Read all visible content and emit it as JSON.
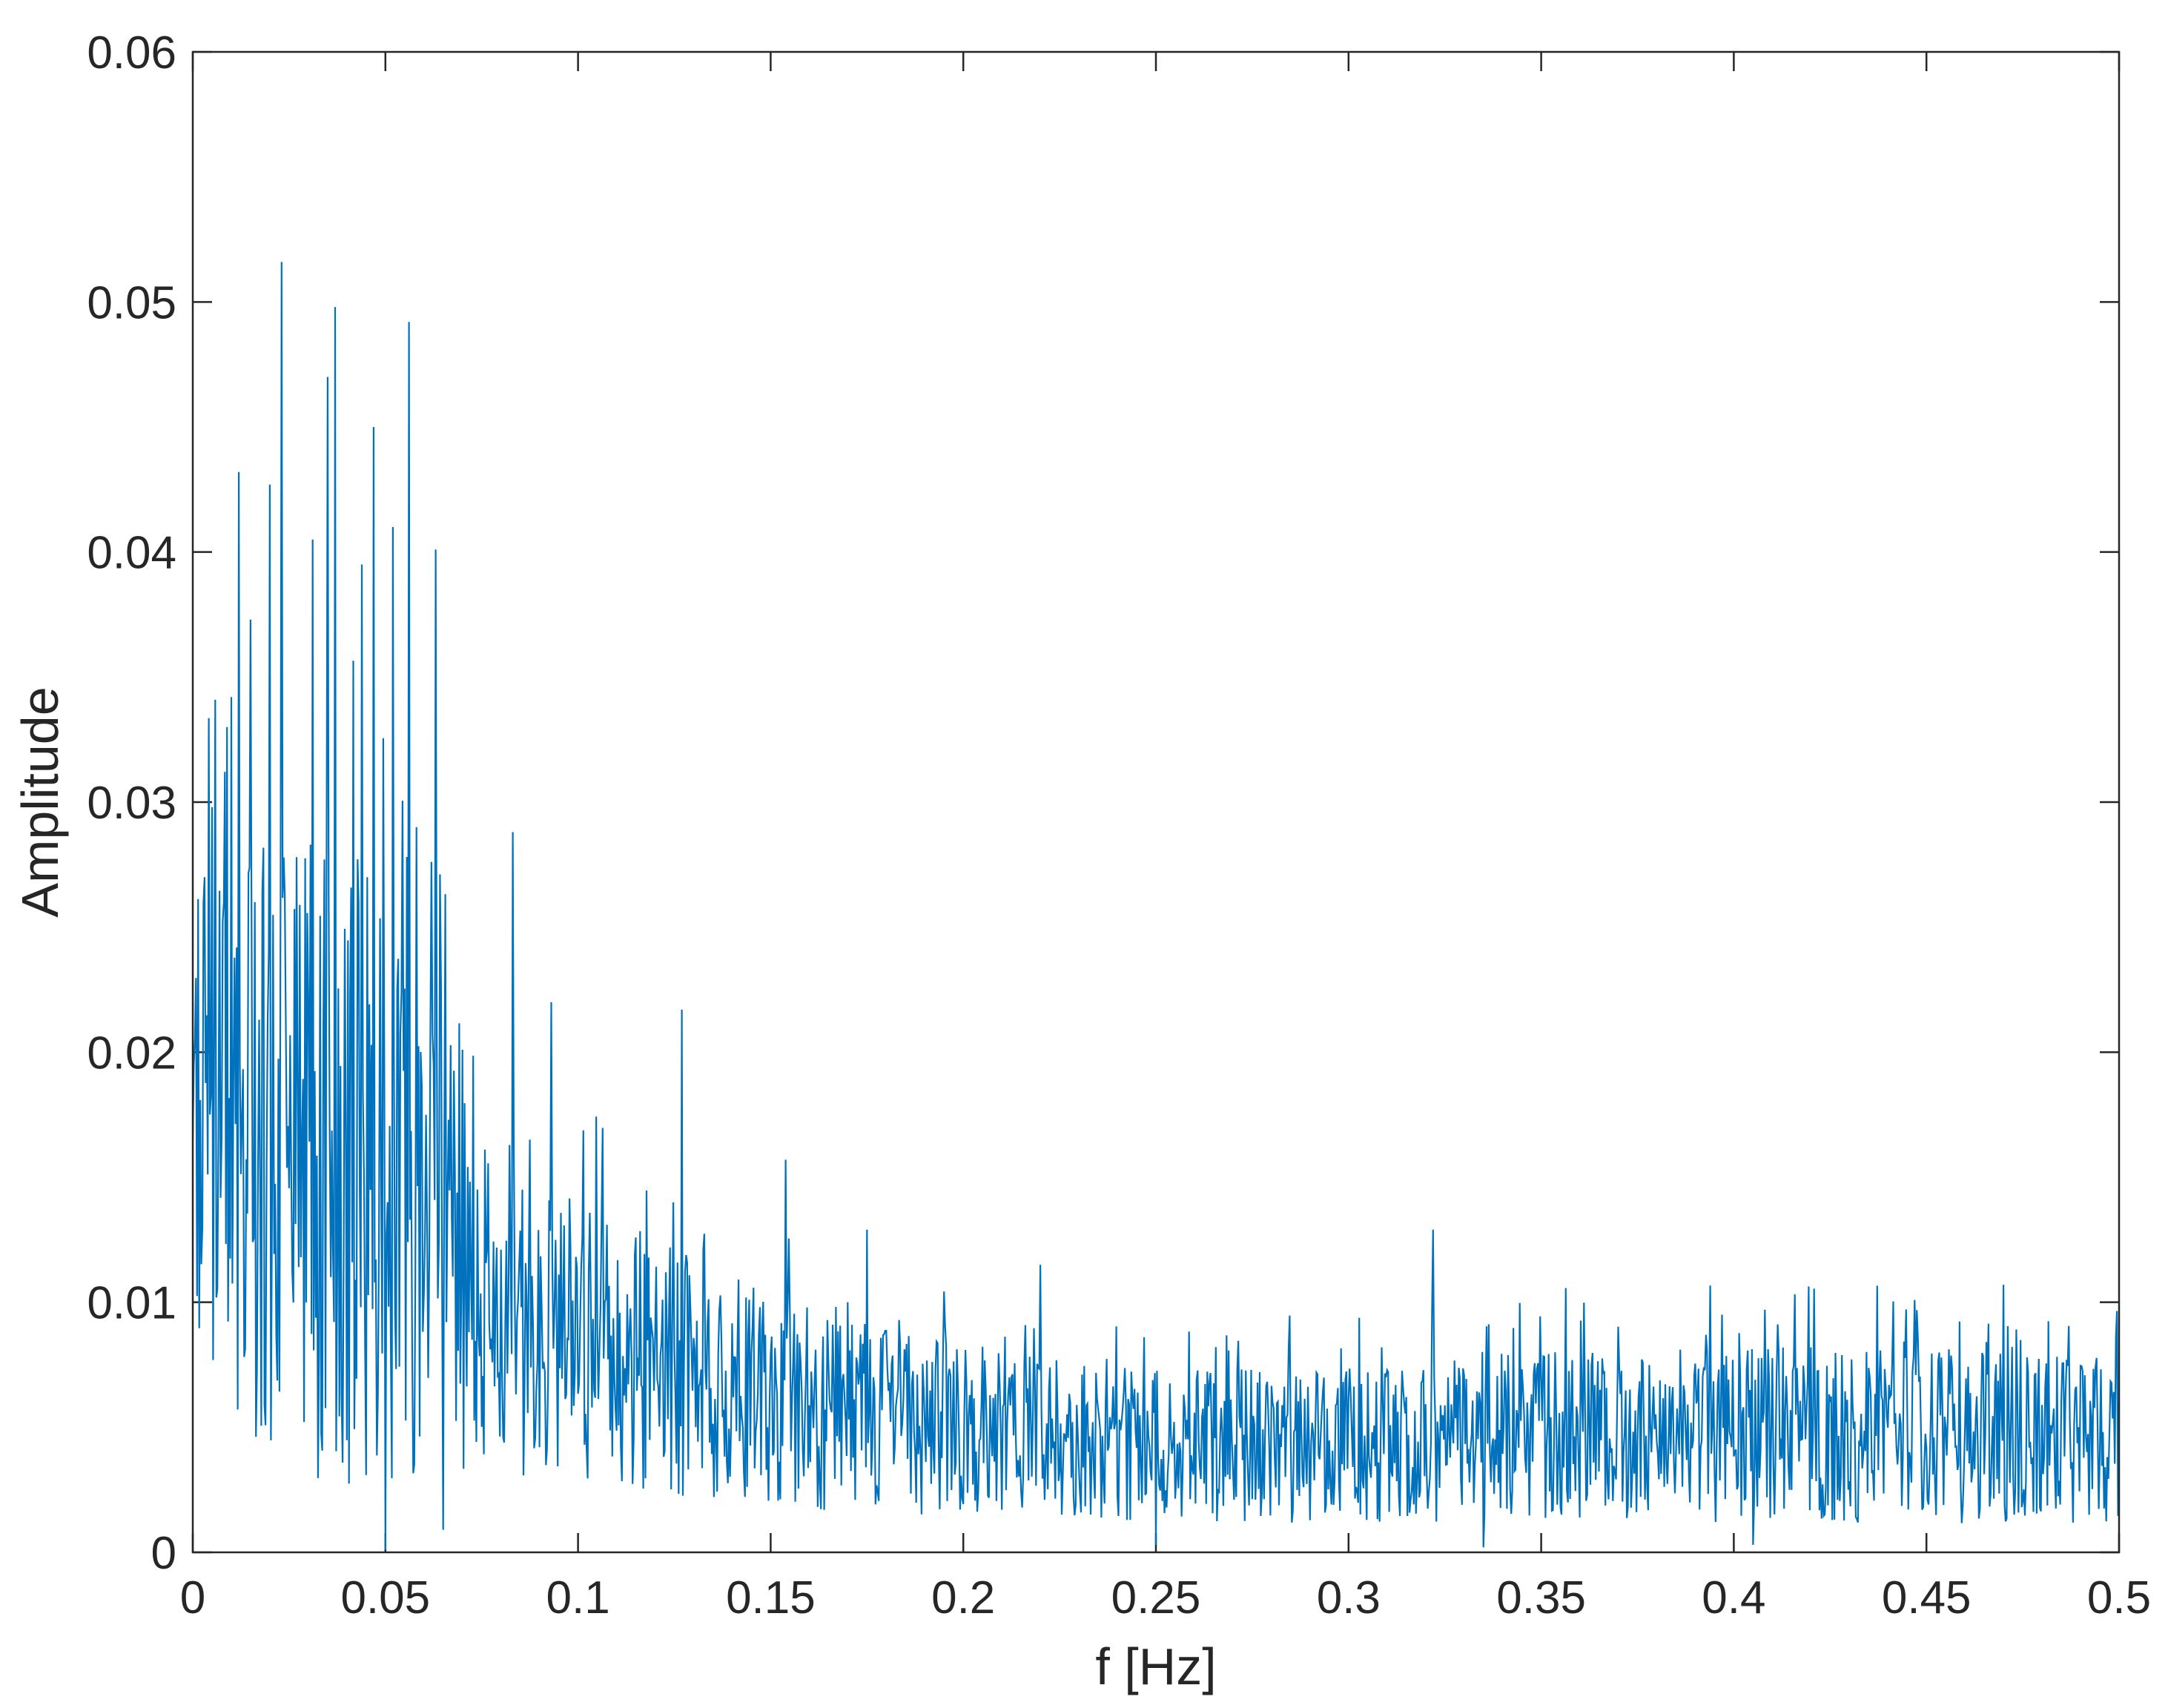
{
  "chart_data": {
    "type": "line",
    "title": "",
    "xlabel": "f [Hz]",
    "ylabel": "Amplitude",
    "xlim": [
      0,
      0.5
    ],
    "ylim": [
      0,
      0.06
    ],
    "x_ticks": [
      "0",
      "0.05",
      "0.1",
      "0.15",
      "0.2",
      "0.25",
      "0.3",
      "0.35",
      "0.4",
      "0.45",
      "0.5"
    ],
    "y_ticks": [
      "0",
      "0.01",
      "0.02",
      "0.03",
      "0.04",
      "0.05",
      "0.06"
    ],
    "grid": false,
    "line_color": "#0072BD",
    "axis_color": "#262626",
    "series": [
      {
        "x_range": [
          0,
          0.5
        ],
        "peaks": [
          {
            "x": 0.0,
            "y": 0.0165
          },
          {
            "x": 0.003,
            "y": 0.027
          },
          {
            "x": 0.005,
            "y": 0.0298
          },
          {
            "x": 0.008,
            "y": 0.026
          },
          {
            "x": 0.009,
            "y": 0.033
          },
          {
            "x": 0.01,
            "y": 0.0342
          },
          {
            "x": 0.012,
            "y": 0.0432
          },
          {
            "x": 0.015,
            "y": 0.0373
          },
          {
            "x": 0.02,
            "y": 0.0427
          },
          {
            "x": 0.023,
            "y": 0.0516
          },
          {
            "x": 0.027,
            "y": 0.0278
          },
          {
            "x": 0.031,
            "y": 0.0405
          },
          {
            "x": 0.035,
            "y": 0.047
          },
          {
            "x": 0.037,
            "y": 0.0498
          },
          {
            "x": 0.044,
            "y": 0.0395
          },
          {
            "x": 0.047,
            "y": 0.045
          },
          {
            "x": 0.052,
            "y": 0.041
          },
          {
            "x": 0.056,
            "y": 0.0492
          },
          {
            "x": 0.058,
            "y": 0.029
          },
          {
            "x": 0.063,
            "y": 0.0401
          },
          {
            "x": 0.083,
            "y": 0.0288
          },
          {
            "x": 0.093,
            "y": 0.022
          },
          {
            "x": 0.127,
            "y": 0.0217
          },
          {
            "x": 0.154,
            "y": 0.0157
          },
          {
            "x": 0.175,
            "y": 0.0129
          },
          {
            "x": 0.22,
            "y": 0.0115
          },
          {
            "x": 0.322,
            "y": 0.0129
          },
          {
            "x": 0.47,
            "y": 0.0107
          }
        ],
        "valleys": [
          {
            "x": 0.05,
            "y": 0.0001
          },
          {
            "x": 0.065,
            "y": 0.0009
          },
          {
            "x": 0.25,
            "y": 0.0003
          },
          {
            "x": 0.335,
            "y": 0.0002
          },
          {
            "x": 0.405,
            "y": 0.0003
          }
        ],
        "envelope": [
          {
            "x": 0.0,
            "mean": 0.017,
            "spread": 0.014
          },
          {
            "x": 0.02,
            "mean": 0.016,
            "spread": 0.016
          },
          {
            "x": 0.04,
            "mean": 0.015,
            "spread": 0.017
          },
          {
            "x": 0.06,
            "mean": 0.0125,
            "spread": 0.013
          },
          {
            "x": 0.08,
            "mean": 0.009,
            "spread": 0.008
          },
          {
            "x": 0.1,
            "mean": 0.0085,
            "spread": 0.0075
          },
          {
            "x": 0.13,
            "mean": 0.007,
            "spread": 0.0065
          },
          {
            "x": 0.16,
            "mean": 0.0058,
            "spread": 0.0055
          },
          {
            "x": 0.2,
            "mean": 0.0048,
            "spread": 0.0045
          },
          {
            "x": 0.25,
            "mean": 0.0042,
            "spread": 0.0042
          },
          {
            "x": 0.3,
            "mean": 0.0042,
            "spread": 0.0042
          },
          {
            "x": 0.35,
            "mean": 0.0047,
            "spread": 0.0045
          },
          {
            "x": 0.4,
            "mean": 0.0047,
            "spread": 0.0047
          },
          {
            "x": 0.45,
            "mean": 0.0047,
            "spread": 0.0047
          },
          {
            "x": 0.5,
            "mean": 0.0043,
            "spread": 0.0043
          }
        ]
      }
    ]
  }
}
